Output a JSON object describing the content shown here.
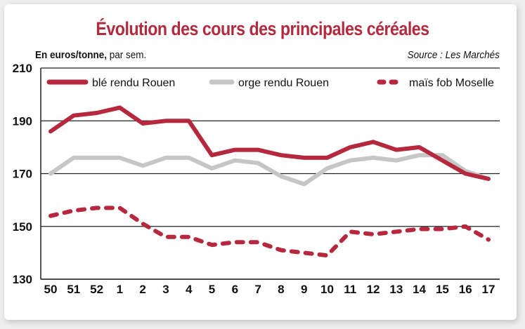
{
  "title": "Évolution des cours des principales céréales",
  "unit_bold": "En euros/tonne,",
  "unit_rest": " par sem.",
  "source": "Source : Les Marchés",
  "chart_data": {
    "type": "line",
    "title": "Évolution des cours des principales céréales",
    "xlabel": "",
    "ylabel": "En euros/tonne, par sem.",
    "categories": [
      "50",
      "51",
      "52",
      "1",
      "2",
      "3",
      "4",
      "5",
      "6",
      "7",
      "8",
      "9",
      "10",
      "11",
      "12",
      "13",
      "14",
      "15",
      "16",
      "17"
    ],
    "ylim": [
      130,
      210
    ],
    "yticks": [
      130,
      150,
      170,
      190,
      210
    ],
    "grid": "horizontal",
    "legend": "top",
    "series": [
      {
        "name": "blé rendu Rouen",
        "color": "#b5283d",
        "style": "solid",
        "values": [
          186,
          192,
          193,
          195,
          189,
          190,
          190,
          177,
          179,
          179,
          177,
          176,
          176,
          180,
          182,
          179,
          180,
          175,
          170,
          168
        ]
      },
      {
        "name": "orge rendu Rouen",
        "color": "#c6c6c6",
        "style": "solid",
        "values": [
          170,
          176,
          176,
          176,
          173,
          176,
          176,
          172,
          175,
          174,
          169,
          166,
          172,
          175,
          176,
          175,
          177,
          177,
          171,
          168
        ]
      },
      {
        "name": "maïs fob Moselle",
        "color": "#b5283d",
        "style": "dashed",
        "values": [
          154,
          156,
          157,
          157,
          151,
          146,
          146,
          143,
          144,
          144,
          141,
          140,
          139,
          148,
          147,
          148,
          149,
          149,
          150,
          145
        ]
      }
    ]
  }
}
